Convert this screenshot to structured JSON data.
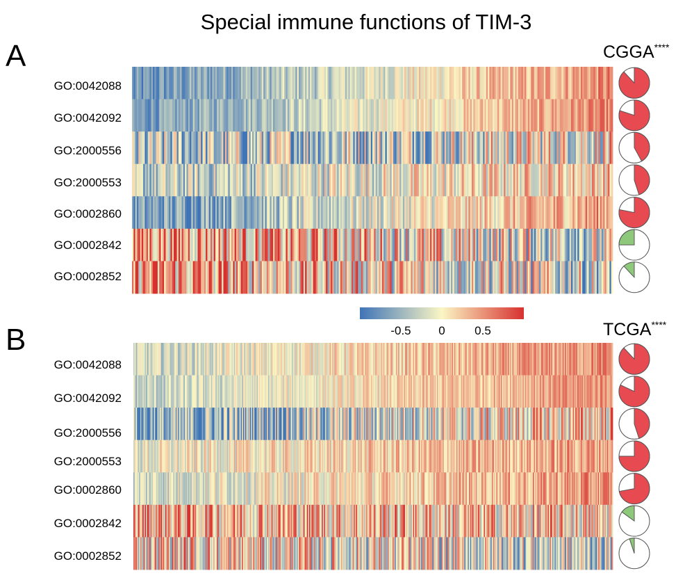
{
  "title": "Special immune functions of TIM-3",
  "colors": {
    "low": "#3f74b7",
    "mid": "#fbf6c4",
    "high": "#d7312f",
    "pie_positive": "#e84a52",
    "pie_negative": "#8ec97b",
    "pie_outline": "#555555"
  },
  "colorbar": {
    "range": [
      -1,
      1
    ],
    "ticks": [
      {
        "value": -0.5,
        "label": "-0.5"
      },
      {
        "value": 0,
        "label": "0"
      },
      {
        "value": 0.5,
        "label": "0.5"
      }
    ]
  },
  "chart_data": [
    {
      "type": "heatmap",
      "panel_label": "A",
      "cohort": "CGGA",
      "significance": "****",
      "rows": [
        {
          "label": "GO:0042088",
          "trend": 0.85,
          "noise": 0.35,
          "base": -0.2,
          "pie_fraction": 0.88,
          "pie_sign": "positive"
        },
        {
          "label": "GO:0042092",
          "trend": 0.8,
          "noise": 0.3,
          "base": -0.15,
          "pie_fraction": 0.8,
          "pie_sign": "positive"
        },
        {
          "label": "GO:2000556",
          "trend": 0.35,
          "noise": 0.85,
          "base": -0.25,
          "pie_fraction": 0.42,
          "pie_sign": "positive"
        },
        {
          "label": "GO:2000553",
          "trend": 0.4,
          "noise": 0.55,
          "base": -0.1,
          "pie_fraction": 0.45,
          "pie_sign": "positive"
        },
        {
          "label": "GO:0002860",
          "trend": 0.75,
          "noise": 0.45,
          "base": -0.2,
          "pie_fraction": 0.78,
          "pie_sign": "positive"
        },
        {
          "label": "GO:0002842",
          "trend": -0.5,
          "noise": 0.9,
          "base": 0.2,
          "pie_fraction": 0.25,
          "pie_sign": "negative"
        },
        {
          "label": "GO:0002852",
          "trend": -0.45,
          "noise": 0.9,
          "base": 0.15,
          "pie_fraction": 0.12,
          "pie_sign": "negative"
        }
      ]
    },
    {
      "type": "heatmap",
      "panel_label": "B",
      "cohort": "TCGA",
      "significance": "****",
      "rows": [
        {
          "label": "GO:0042088",
          "trend": 0.5,
          "noise": 0.35,
          "base": 0.1,
          "pie_fraction": 0.88,
          "pie_sign": "positive"
        },
        {
          "label": "GO:0042092",
          "trend": 0.55,
          "noise": 0.3,
          "base": 0.05,
          "pie_fraction": 0.82,
          "pie_sign": "positive"
        },
        {
          "label": "GO:2000556",
          "trend": 0.6,
          "noise": 0.8,
          "base": -0.25,
          "pie_fraction": 0.45,
          "pie_sign": "positive"
        },
        {
          "label": "GO:2000553",
          "trend": 0.35,
          "noise": 0.4,
          "base": 0.15,
          "pie_fraction": 0.75,
          "pie_sign": "positive"
        },
        {
          "label": "GO:0002860",
          "trend": 0.45,
          "noise": 0.4,
          "base": 0.1,
          "pie_fraction": 0.72,
          "pie_sign": "positive"
        },
        {
          "label": "GO:0002842",
          "trend": -0.2,
          "noise": 0.8,
          "base": 0.3,
          "pie_fraction": 0.15,
          "pie_sign": "negative"
        },
        {
          "label": "GO:0002852",
          "trend": -0.3,
          "noise": 0.85,
          "base": 0.0,
          "pie_fraction": 0.05,
          "pie_sign": "negative"
        }
      ]
    }
  ]
}
